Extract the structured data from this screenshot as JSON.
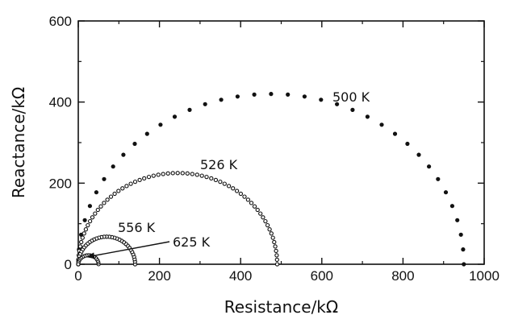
{
  "chart_data": {
    "type": "scatter",
    "xlabel": "Resistance/kΩ",
    "ylabel": "Reactance/kΩ",
    "xlim": [
      0,
      1000
    ],
    "ylim": [
      0,
      600
    ],
    "x_ticks": [
      "0",
      "200",
      "400",
      "600",
      "800",
      "1000"
    ],
    "y_ticks": [
      "0",
      "200",
      "400",
      "600"
    ],
    "x_tick_values": [
      0,
      200,
      400,
      600,
      800,
      1000
    ],
    "y_tick_values": [
      0,
      200,
      400,
      600
    ],
    "grid": false,
    "series": [
      {
        "name": "500 K",
        "shape": "semicircle",
        "x_min": 0,
        "x_max": 950,
        "peak_y": 420,
        "marker": "filled-dot"
      },
      {
        "name": "526 K",
        "shape": "semicircle",
        "x_min": 0,
        "x_max": 490,
        "peak_y": 225,
        "marker": "open-dot"
      },
      {
        "name": "556 K",
        "shape": "semicircle",
        "x_min": 0,
        "x_max": 140,
        "peak_y": 68,
        "marker": "open-dot"
      },
      {
        "name": "625 K",
        "shape": "semicircle",
        "x_min": 0,
        "x_max": 50,
        "peak_y": 22,
        "marker": "open-dot"
      }
    ],
    "annotations": [
      {
        "text": "500 K",
        "series": "500 K"
      },
      {
        "text": "526 K",
        "series": "526 K"
      },
      {
        "text": "556 K",
        "series": "556 K"
      },
      {
        "text": "625 K",
        "series": "625 K",
        "arrow": true
      }
    ]
  }
}
